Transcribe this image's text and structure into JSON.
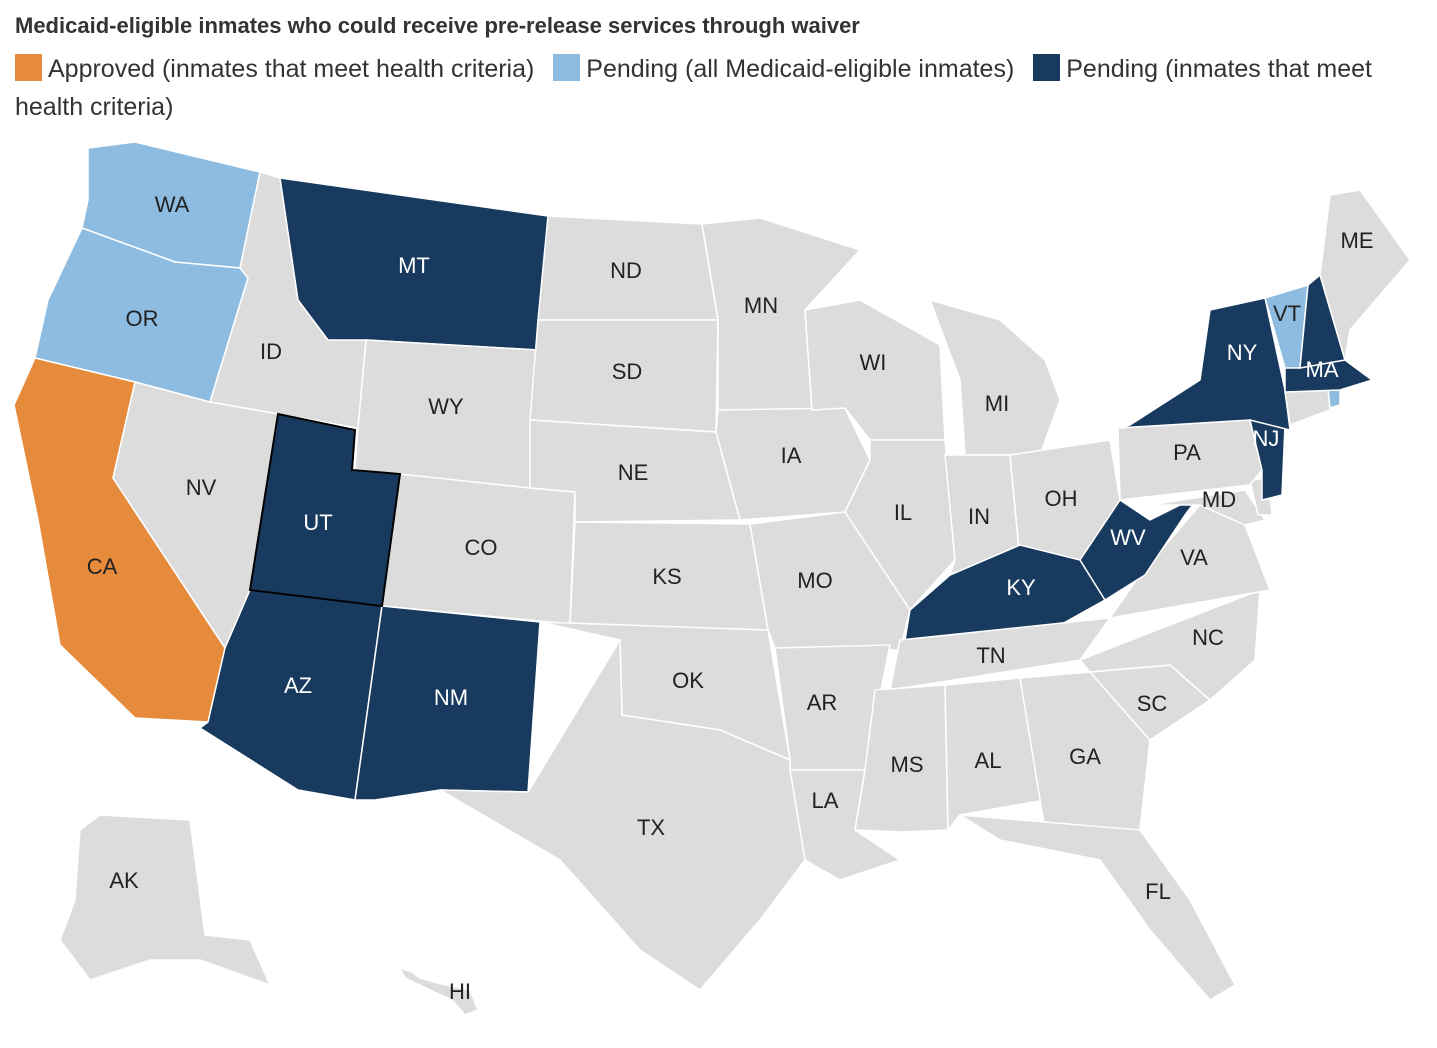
{
  "title": "Medicaid-eligible inmates who could receive pre-release services through waiver",
  "legend": [
    {
      "key": "approved",
      "label": "Approved (inmates that meet health criteria)",
      "color": "#e68a3c"
    },
    {
      "key": "pending_all",
      "label": "Pending (all Medicaid-eligible inmates)",
      "color": "#8dbce0"
    },
    {
      "key": "pending_health",
      "label": "Pending (inmates that meet health criteria)",
      "color": "#173a5e"
    }
  ],
  "no_waiver_color": "#dcdcdc",
  "states": [
    {
      "abbr": "WA",
      "status": "pending_all"
    },
    {
      "abbr": "OR",
      "status": "pending_all"
    },
    {
      "abbr": "CA",
      "status": "approved"
    },
    {
      "abbr": "ID",
      "status": "none"
    },
    {
      "abbr": "NV",
      "status": "none"
    },
    {
      "abbr": "MT",
      "status": "pending_health"
    },
    {
      "abbr": "WY",
      "status": "none"
    },
    {
      "abbr": "UT",
      "status": "pending_health"
    },
    {
      "abbr": "AZ",
      "status": "pending_health"
    },
    {
      "abbr": "CO",
      "status": "none"
    },
    {
      "abbr": "NM",
      "status": "pending_health"
    },
    {
      "abbr": "ND",
      "status": "none"
    },
    {
      "abbr": "SD",
      "status": "none"
    },
    {
      "abbr": "NE",
      "status": "none"
    },
    {
      "abbr": "KS",
      "status": "none"
    },
    {
      "abbr": "OK",
      "status": "none"
    },
    {
      "abbr": "TX",
      "status": "none"
    },
    {
      "abbr": "MN",
      "status": "none"
    },
    {
      "abbr": "IA",
      "status": "none"
    },
    {
      "abbr": "MO",
      "status": "none"
    },
    {
      "abbr": "AR",
      "status": "none"
    },
    {
      "abbr": "LA",
      "status": "none"
    },
    {
      "abbr": "WI",
      "status": "none"
    },
    {
      "abbr": "IL",
      "status": "none"
    },
    {
      "abbr": "MI",
      "status": "none"
    },
    {
      "abbr": "IN",
      "status": "none"
    },
    {
      "abbr": "OH",
      "status": "none"
    },
    {
      "abbr": "KY",
      "status": "pending_health"
    },
    {
      "abbr": "TN",
      "status": "none"
    },
    {
      "abbr": "MS",
      "status": "none"
    },
    {
      "abbr": "AL",
      "status": "none"
    },
    {
      "abbr": "GA",
      "status": "none"
    },
    {
      "abbr": "FL",
      "status": "none"
    },
    {
      "abbr": "SC",
      "status": "none"
    },
    {
      "abbr": "NC",
      "status": "none"
    },
    {
      "abbr": "VA",
      "status": "none"
    },
    {
      "abbr": "WV",
      "status": "pending_health"
    },
    {
      "abbr": "MD",
      "status": "none"
    },
    {
      "abbr": "DE",
      "status": "none"
    },
    {
      "abbr": "PA",
      "status": "none"
    },
    {
      "abbr": "NJ",
      "status": "pending_health"
    },
    {
      "abbr": "NY",
      "status": "pending_health"
    },
    {
      "abbr": "CT",
      "status": "none"
    },
    {
      "abbr": "RI",
      "status": "pending_all"
    },
    {
      "abbr": "MA",
      "status": "pending_health"
    },
    {
      "abbr": "VT",
      "status": "pending_all"
    },
    {
      "abbr": "NH",
      "status": "pending_health"
    },
    {
      "abbr": "ME",
      "status": "none"
    },
    {
      "abbr": "AK",
      "status": "none"
    },
    {
      "abbr": "HI",
      "status": "none"
    }
  ]
}
